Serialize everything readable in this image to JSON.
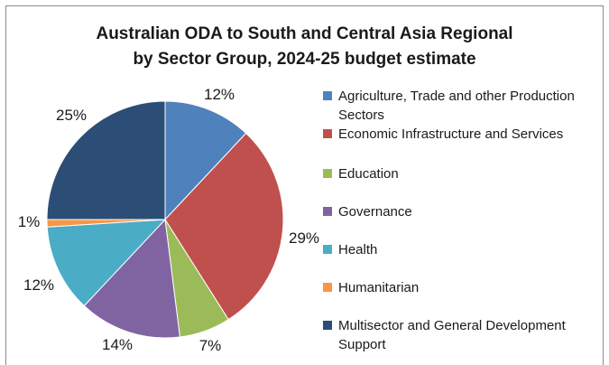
{
  "chart_data": {
    "type": "pie",
    "title_line1": "Australian ODA to South and Central Asia Regional",
    "title_line2": "by Sector Group, 2024-25 budget estimate",
    "slices": [
      {
        "label": "Agriculture, Trade and other Production Sectors",
        "value": 12,
        "display": "12%",
        "color": "#4f81bd"
      },
      {
        "label": "Economic Infrastructure and Services",
        "value": 29,
        "display": "29%",
        "color": "#c0504d"
      },
      {
        "label": "Education",
        "value": 7,
        "display": "7%",
        "color": "#9bbb59"
      },
      {
        "label": "Governance",
        "value": 14,
        "display": "14%",
        "color": "#8064a2"
      },
      {
        "label": "Health",
        "value": 12,
        "display": "12%",
        "color": "#4bacc6"
      },
      {
        "label": "Humanitarian",
        "value": 1,
        "display": "1%",
        "color": "#f79646"
      },
      {
        "label": "Multisector and General Development Support",
        "value": 25,
        "display": "25%",
        "color": "#2c4d75"
      }
    ],
    "legend_position": "right",
    "start_angle": "12 o'clock",
    "direction": "clockwise"
  }
}
